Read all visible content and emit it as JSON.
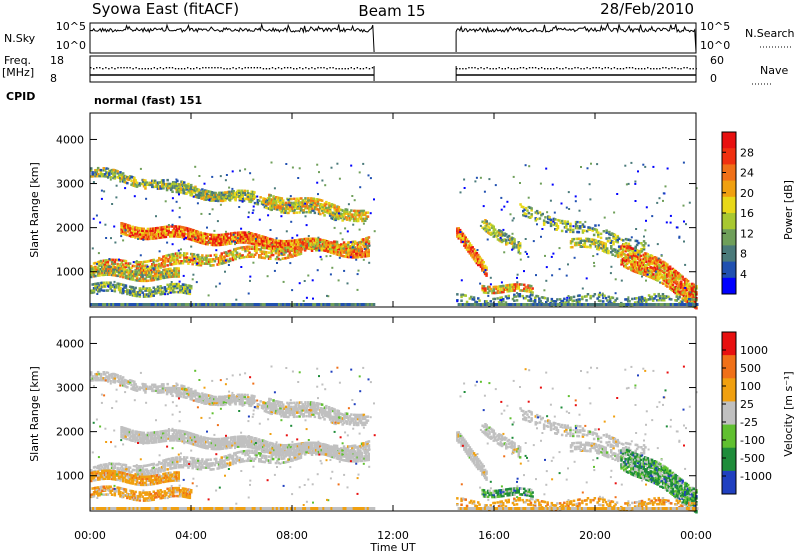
{
  "header": {
    "radar_title": "Syowa East (fitACF)",
    "beam": "Beam 15",
    "date": "28/Feb/2010"
  },
  "aux_panels": {
    "nsky_label": "N.Sky",
    "nsky_ticks": [
      "10^5",
      "10^0"
    ],
    "nsearch_label": "N.Search",
    "nsearch_ticks": [
      "10^5",
      "10^0"
    ],
    "freq_label_1": "Freq.",
    "freq_label_2": "[MHz]",
    "freq_ticks": [
      "18",
      "8"
    ],
    "nave_label": "Nave",
    "nave_ticks": [
      "60",
      "0"
    ],
    "cpid_label": "CPID",
    "cpid_value": "normal (fast) 151"
  },
  "colors": {
    "power_scale": [
      "#0000ff",
      "#2050b0",
      "#4a7a7a",
      "#6f9f5a",
      "#a8c830",
      "#e8d818",
      "#f0a010",
      "#f07018",
      "#f03010",
      "#e81010"
    ],
    "velocity_scale": [
      "#2040c0",
      "#1e8c3a",
      "#60c030",
      "#c0c0c0",
      "#f0a010",
      "#f07018",
      "#e81010"
    ],
    "gray_echo": "#c0c0c0"
  },
  "chart_data": [
    {
      "type": "heatmap",
      "name": "power",
      "ylabel": "Slant Range [km]",
      "yticks": [
        "1000",
        "2000",
        "3000",
        "4000"
      ],
      "ylim": [
        200,
        4600
      ],
      "colorbar_label": "Power [dB]",
      "colorbar_ticks": [
        "28",
        "24",
        "20",
        "16",
        "12",
        "8",
        "4"
      ],
      "colorbar_range": [
        0,
        32
      ]
    },
    {
      "type": "heatmap",
      "name": "velocity",
      "ylabel": "Slant Range [km]",
      "yticks": [
        "1000",
        "2000",
        "3000",
        "4000"
      ],
      "ylim": [
        200,
        4600
      ],
      "colorbar_label": "Velocity [m s⁻¹]",
      "colorbar_ticks": [
        "1000",
        "500",
        "100",
        "25",
        "-25",
        "-100",
        "-500",
        "-1000"
      ]
    }
  ],
  "xaxis": {
    "xlabel": "Time UT",
    "xticks": [
      "00:00",
      "04:00",
      "08:00",
      "12:00",
      "16:00",
      "20:00",
      "00:00"
    ],
    "xlim_hours": [
      0,
      24
    ],
    "data_gap_hours": [
      11.25,
      14.5
    ]
  }
}
